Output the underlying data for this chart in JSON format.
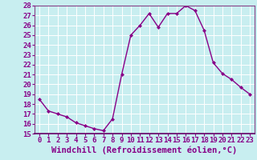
{
  "x": [
    0,
    1,
    2,
    3,
    4,
    5,
    6,
    7,
    8,
    9,
    10,
    11,
    12,
    13,
    14,
    15,
    16,
    17,
    18,
    19,
    20,
    21,
    22,
    23
  ],
  "y": [
    18.5,
    17.3,
    17.0,
    16.7,
    16.1,
    15.8,
    15.5,
    15.3,
    16.5,
    21.0,
    25.0,
    26.0,
    27.2,
    25.8,
    27.2,
    27.2,
    28.0,
    27.5,
    25.5,
    22.2,
    21.1,
    20.5,
    19.7,
    19.0
  ],
  "line_color": "#880088",
  "marker": "D",
  "marker_size": 2.0,
  "bg_color": "#c8eef0",
  "grid_color": "#b0d8dc",
  "border_color": "#884488",
  "xlabel": "Windchill (Refroidissement éolien,°C)",
  "xlabel_fontsize": 7.5,
  "ylim": [
    15,
    28
  ],
  "xlim": [
    -0.5,
    23.5
  ],
  "yticks": [
    15,
    16,
    17,
    18,
    19,
    20,
    21,
    22,
    23,
    24,
    25,
    26,
    27,
    28
  ],
  "xticks": [
    0,
    1,
    2,
    3,
    4,
    5,
    6,
    7,
    8,
    9,
    10,
    11,
    12,
    13,
    14,
    15,
    16,
    17,
    18,
    19,
    20,
    21,
    22,
    23
  ],
  "tick_fontsize": 6.5,
  "line_width": 1.0
}
